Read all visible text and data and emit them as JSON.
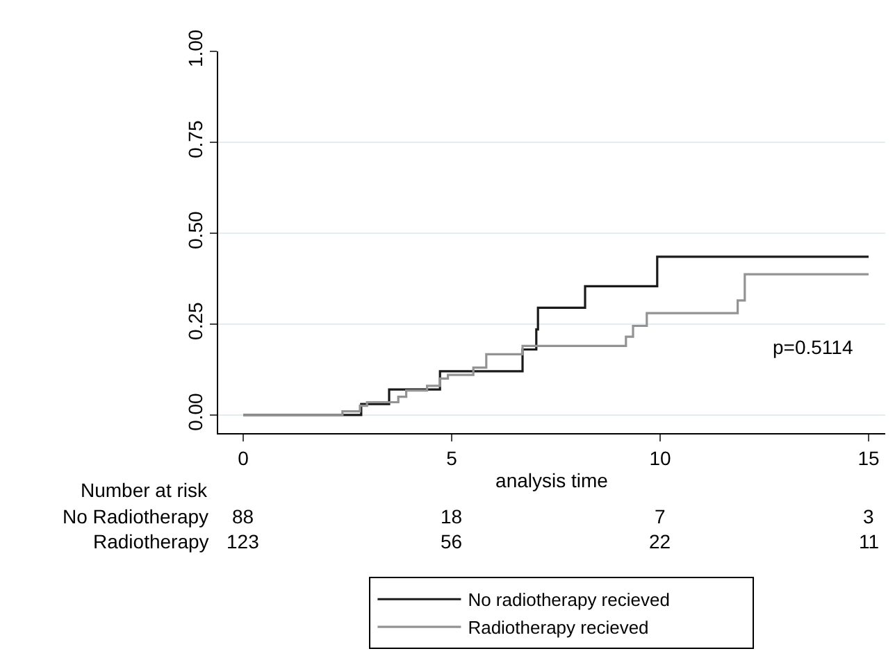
{
  "chart_data": {
    "type": "step",
    "xlabel": "analysis time",
    "series": [
      {
        "name": "No radiotherapy recieved",
        "color": "#1a1a1a",
        "x": [
          0,
          2.83,
          3.5,
          4.72,
          6.7,
          7.03,
          7.07,
          8.2,
          9.93,
          15
        ],
        "values": [
          0,
          0.03,
          0.07,
          0.12,
          0.18,
          0.235,
          0.295,
          0.354,
          0.435,
          0.435
        ]
      },
      {
        "name": "Radiotherapy recieved",
        "color": "#939393",
        "x": [
          0,
          2.38,
          2.8,
          2.97,
          3.72,
          3.91,
          4.41,
          4.72,
          4.91,
          5.52,
          5.83,
          6.7,
          9.18,
          9.35,
          9.68,
          11.86,
          12.03,
          15
        ],
        "values": [
          0,
          0.01,
          0.025,
          0.035,
          0.05,
          0.067,
          0.08,
          0.1,
          0.11,
          0.13,
          0.167,
          0.19,
          0.215,
          0.245,
          0.28,
          0.315,
          0.387,
          0.387
        ]
      }
    ],
    "xlim": [
      -0.6,
      15.4
    ],
    "xticks": [
      0,
      5,
      10,
      15
    ],
    "ylim": [
      -0.05,
      1.0
    ],
    "yticks": [
      {
        "value": 0,
        "label": "0.00"
      },
      {
        "value": 0.25,
        "label": "0.25"
      },
      {
        "value": 0.5,
        "label": "0.50"
      },
      {
        "value": 0.75,
        "label": "0.75"
      },
      {
        "value": 1,
        "label": "1.00"
      }
    ],
    "grid": "y",
    "legend": "bottom",
    "annotations": [
      "p=0.5114",
      "Number at risk",
      "No Radiotherapy",
      "88",
      "18",
      "7",
      "3",
      "Radiotherapy",
      "123",
      "56",
      "22",
      "11"
    ]
  }
}
